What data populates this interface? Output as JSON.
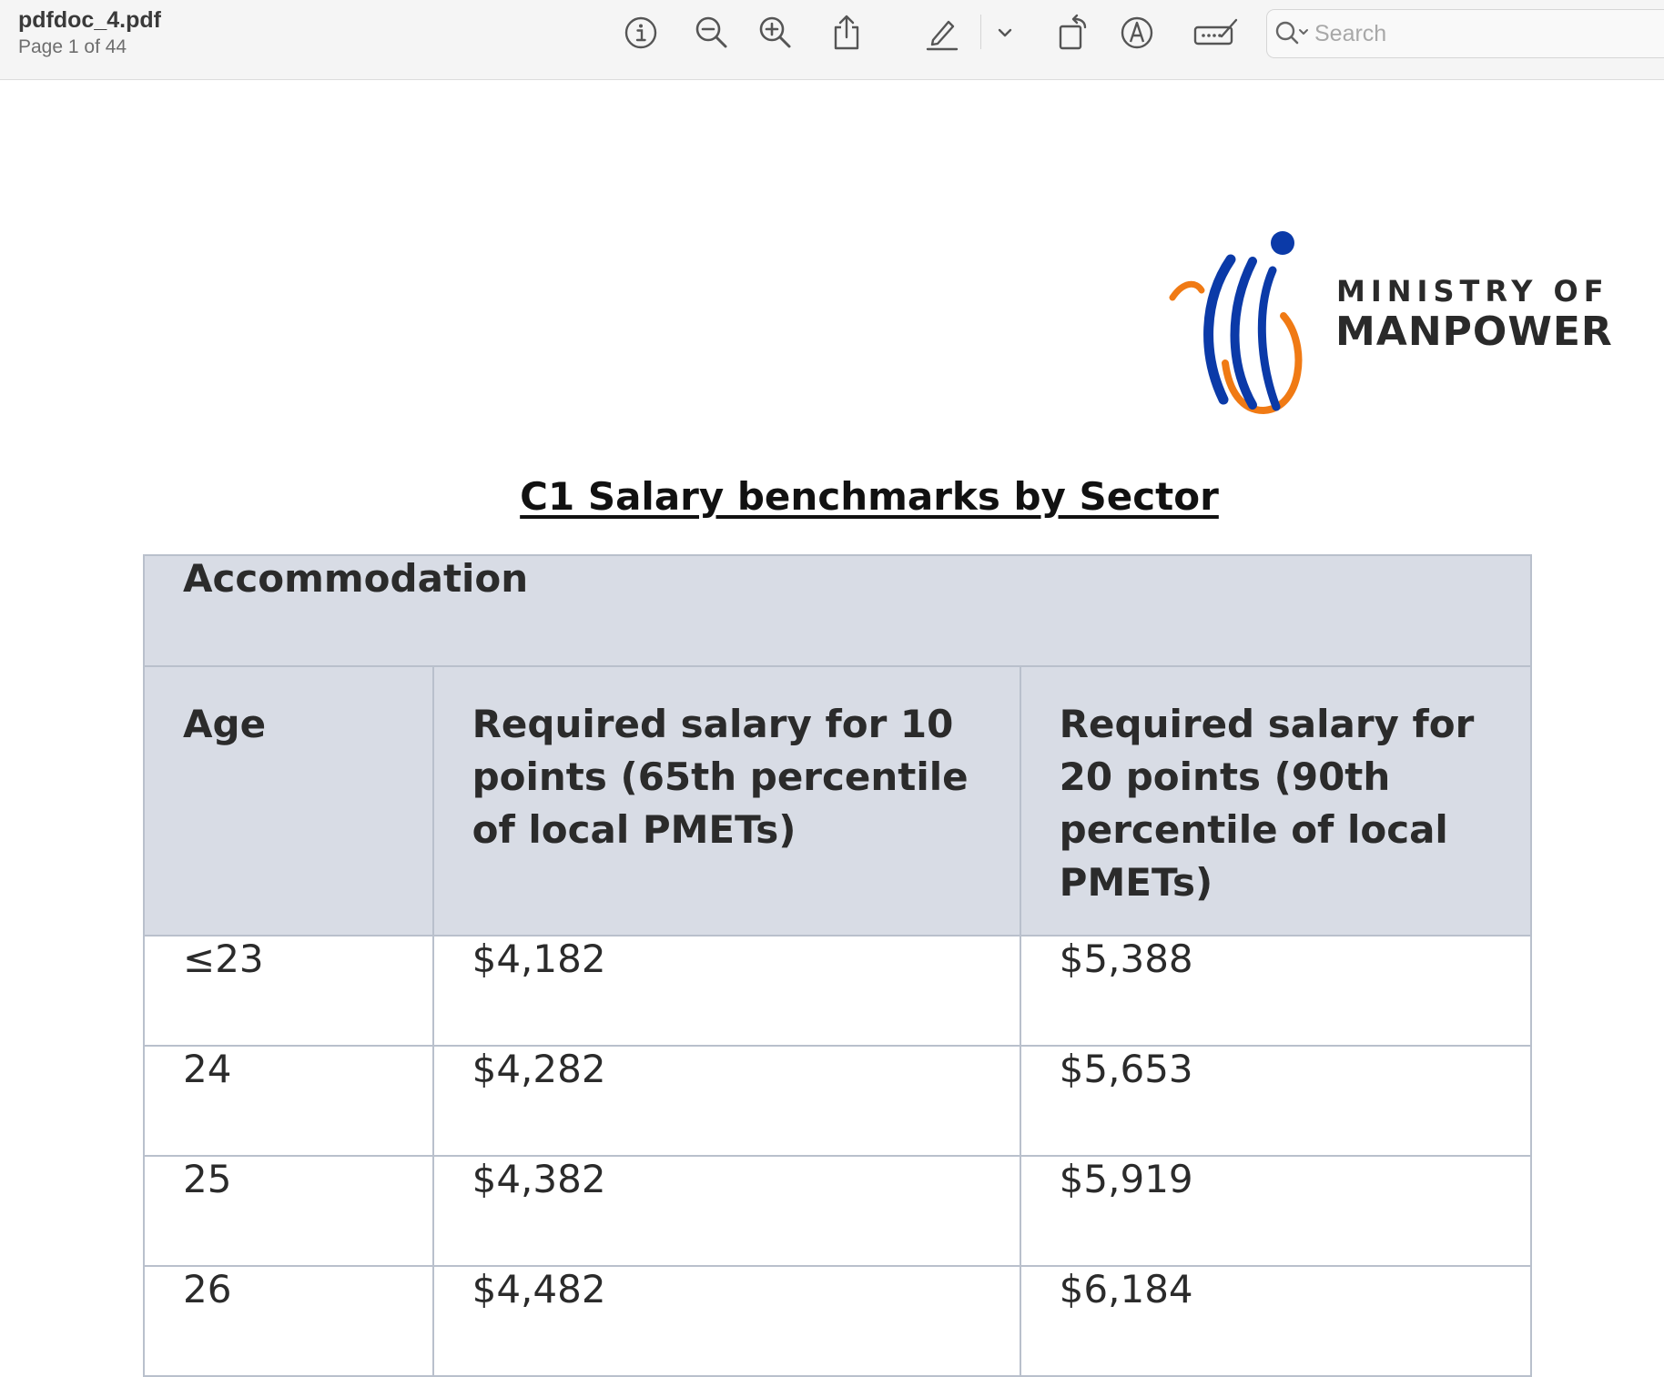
{
  "window": {
    "file_name": "pdfdoc_4.pdf",
    "page_indicator": "Page 1 of 44"
  },
  "toolbar": {
    "icons": [
      "info-icon",
      "zoom-out-icon",
      "zoom-in-icon",
      "share-icon",
      "highlight-icon",
      "chevron-down-icon",
      "rotate-icon",
      "markup-icon",
      "form-fill-icon"
    ],
    "search": {
      "placeholder": "Search",
      "value": ""
    }
  },
  "document": {
    "logo": {
      "line1": "MINISTRY OF",
      "line2": "MANPOWER",
      "colors": {
        "blue": "#0b3aa8",
        "orange": "#f07a14"
      }
    },
    "heading": "C1 Salary benchmarks by Sector",
    "table": {
      "sector": "Accommodation",
      "headers": [
        "Age",
        "Required salary for 10 points (65th percentile of local PMETs)",
        "Required salary for 20 points (90th percentile of local PMETs)"
      ],
      "rows": [
        {
          "age": "≤23",
          "p65": "$4,182",
          "p90": "$5,388"
        },
        {
          "age": "24",
          "p65": "$4,282",
          "p90": "$5,653"
        },
        {
          "age": "25",
          "p65": "$4,382",
          "p90": "$5,919"
        },
        {
          "age": "26",
          "p65": "$4,482",
          "p90": "$6,184"
        }
      ]
    }
  },
  "colors": {
    "toolbar_bg": "#f5f5f5",
    "table_header_bg": "#d8dce5",
    "table_border": "#b9c0cc"
  }
}
